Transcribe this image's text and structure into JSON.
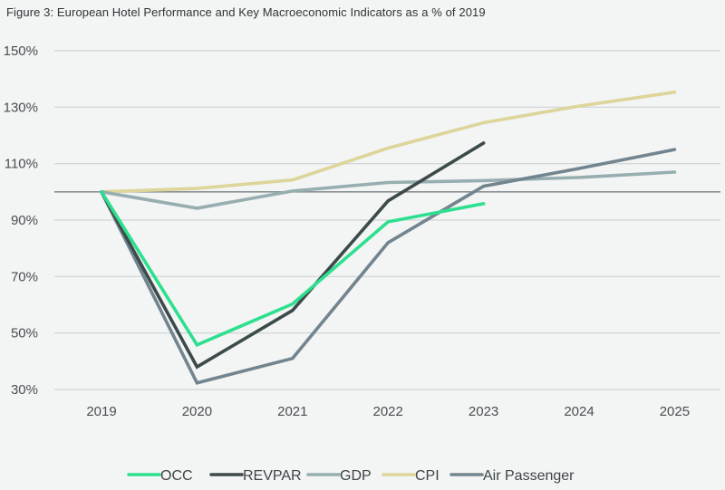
{
  "chart_data": {
    "type": "line",
    "title": "Figure 3: European Hotel Performance and Key Macroeconomic Indicators as a % of 2019",
    "xlabel": "",
    "ylabel": "",
    "categories": [
      "2019",
      "2020",
      "2021",
      "2022",
      "2023",
      "2024",
      "2025"
    ],
    "ylim": [
      30,
      150
    ],
    "yticks": [
      30,
      50,
      70,
      90,
      110,
      130,
      150
    ],
    "ytick_labels": [
      "30%",
      "50%",
      "70%",
      "90%",
      "110%",
      "130%",
      "150%"
    ],
    "reference_line": 100,
    "grid": true,
    "legend_position": "bottom",
    "series": [
      {
        "name": "OCC",
        "color": "#2de08e",
        "values": [
          100,
          45.8,
          60.3,
          89.4,
          95.8,
          null,
          null
        ]
      },
      {
        "name": "REVPAR",
        "color": "#3d4a4a",
        "values": [
          100,
          38.0,
          58.0,
          96.8,
          117.3,
          null,
          null
        ]
      },
      {
        "name": "GDP",
        "color": "#97aeb0",
        "values": [
          100,
          94.2,
          100.3,
          103.3,
          104.0,
          105.1,
          107.0
        ]
      },
      {
        "name": "CPI",
        "color": "#ddd59a",
        "values": [
          100,
          101.2,
          104.2,
          115.5,
          124.5,
          130.4,
          135.3
        ]
      },
      {
        "name": "Air Passenger",
        "color": "#72858f",
        "values": [
          100,
          32.3,
          41.0,
          82.0,
          102.0,
          108.3,
          115.0
        ]
      }
    ]
  },
  "colors": {
    "background": "#f3f4f4",
    "grid": "#cdd3d5",
    "reference": "#8a9194"
  }
}
